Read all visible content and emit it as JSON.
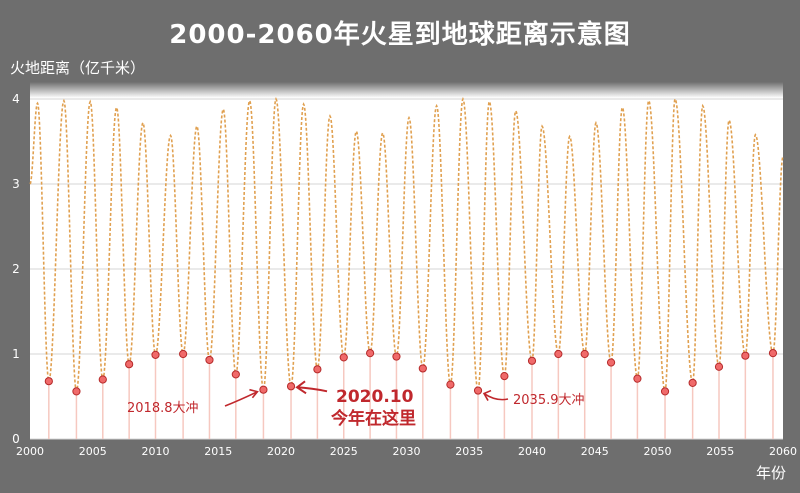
{
  "title": "2000-2060年火星到地球距离示意图",
  "chart_data": {
    "type": "line",
    "ylabel": "火地距离（亿千米）",
    "xlabel": "年份",
    "xlim": [
      2000,
      2060
    ],
    "ylim": [
      0,
      4.2
    ],
    "yticks": [
      "0",
      "1",
      "2",
      "3",
      "4"
    ],
    "xticks": [
      "2000",
      "2005",
      "2010",
      "2015",
      "2020",
      "2025",
      "2030",
      "2035",
      "2040",
      "2045",
      "2050",
      "2055",
      "2060"
    ],
    "grid": true,
    "colors": {
      "curve": "#e0a050",
      "marker_fill": "#f06a6a",
      "marker_edge": "#b52a2a",
      "annotation": "#c0282d"
    },
    "maxima": [
      {
        "x": 2000.6,
        "y": 3.95
      },
      {
        "x": 2002.7,
        "y": 3.98
      },
      {
        "x": 2004.8,
        "y": 3.97
      },
      {
        "x": 2006.9,
        "y": 3.9
      },
      {
        "x": 2009.0,
        "y": 3.72
      },
      {
        "x": 2011.2,
        "y": 3.57
      },
      {
        "x": 2013.3,
        "y": 3.68
      },
      {
        "x": 2015.4,
        "y": 3.88
      },
      {
        "x": 2017.5,
        "y": 3.98
      },
      {
        "x": 2019.6,
        "y": 4.0
      },
      {
        "x": 2021.8,
        "y": 3.94
      },
      {
        "x": 2023.9,
        "y": 3.8
      },
      {
        "x": 2026.0,
        "y": 3.62
      },
      {
        "x": 2028.1,
        "y": 3.6
      },
      {
        "x": 2030.2,
        "y": 3.78
      },
      {
        "x": 2032.4,
        "y": 3.92
      },
      {
        "x": 2034.5,
        "y": 4.0
      },
      {
        "x": 2036.6,
        "y": 3.97
      },
      {
        "x": 2038.7,
        "y": 3.86
      },
      {
        "x": 2040.8,
        "y": 3.68
      },
      {
        "x": 2043.0,
        "y": 3.56
      },
      {
        "x": 2045.1,
        "y": 3.72
      },
      {
        "x": 2047.2,
        "y": 3.9
      },
      {
        "x": 2049.3,
        "y": 3.98
      },
      {
        "x": 2051.4,
        "y": 4.0
      },
      {
        "x": 2053.6,
        "y": 3.92
      },
      {
        "x": 2055.7,
        "y": 3.75
      },
      {
        "x": 2057.8,
        "y": 3.58
      },
      {
        "x": 2060.0,
        "y": 3.32
      }
    ],
    "oppositions": [
      {
        "x": 2001.5,
        "y": 0.68
      },
      {
        "x": 2003.7,
        "y": 0.56
      },
      {
        "x": 2005.8,
        "y": 0.7
      },
      {
        "x": 2007.9,
        "y": 0.88
      },
      {
        "x": 2010.0,
        "y": 0.99
      },
      {
        "x": 2012.2,
        "y": 1.0
      },
      {
        "x": 2014.3,
        "y": 0.93
      },
      {
        "x": 2016.4,
        "y": 0.76
      },
      {
        "x": 2018.6,
        "y": 0.58
      },
      {
        "x": 2020.8,
        "y": 0.62
      },
      {
        "x": 2022.9,
        "y": 0.82
      },
      {
        "x": 2025.0,
        "y": 0.96
      },
      {
        "x": 2027.1,
        "y": 1.01
      },
      {
        "x": 2029.2,
        "y": 0.97
      },
      {
        "x": 2031.3,
        "y": 0.83
      },
      {
        "x": 2033.5,
        "y": 0.64
      },
      {
        "x": 2035.7,
        "y": 0.57
      },
      {
        "x": 2037.8,
        "y": 0.74
      },
      {
        "x": 2040.0,
        "y": 0.92
      },
      {
        "x": 2042.1,
        "y": 1.0
      },
      {
        "x": 2044.2,
        "y": 1.0
      },
      {
        "x": 2046.3,
        "y": 0.9
      },
      {
        "x": 2048.4,
        "y": 0.71
      },
      {
        "x": 2050.6,
        "y": 0.56
      },
      {
        "x": 2052.8,
        "y": 0.66
      },
      {
        "x": 2054.9,
        "y": 0.85
      },
      {
        "x": 2057.0,
        "y": 0.98
      },
      {
        "x": 2059.2,
        "y": 1.01
      }
    ],
    "annotations": [
      {
        "label": "2018.8大冲",
        "x": 2018.6,
        "y": 0.58
      },
      {
        "label": "2020.10",
        "x": 2020.8,
        "y": 0.62
      },
      {
        "label": "今年在这里",
        "x": 2020.8,
        "y": 0.62
      },
      {
        "label": "2035.9大冲",
        "x": 2035.7,
        "y": 0.57
      }
    ]
  }
}
